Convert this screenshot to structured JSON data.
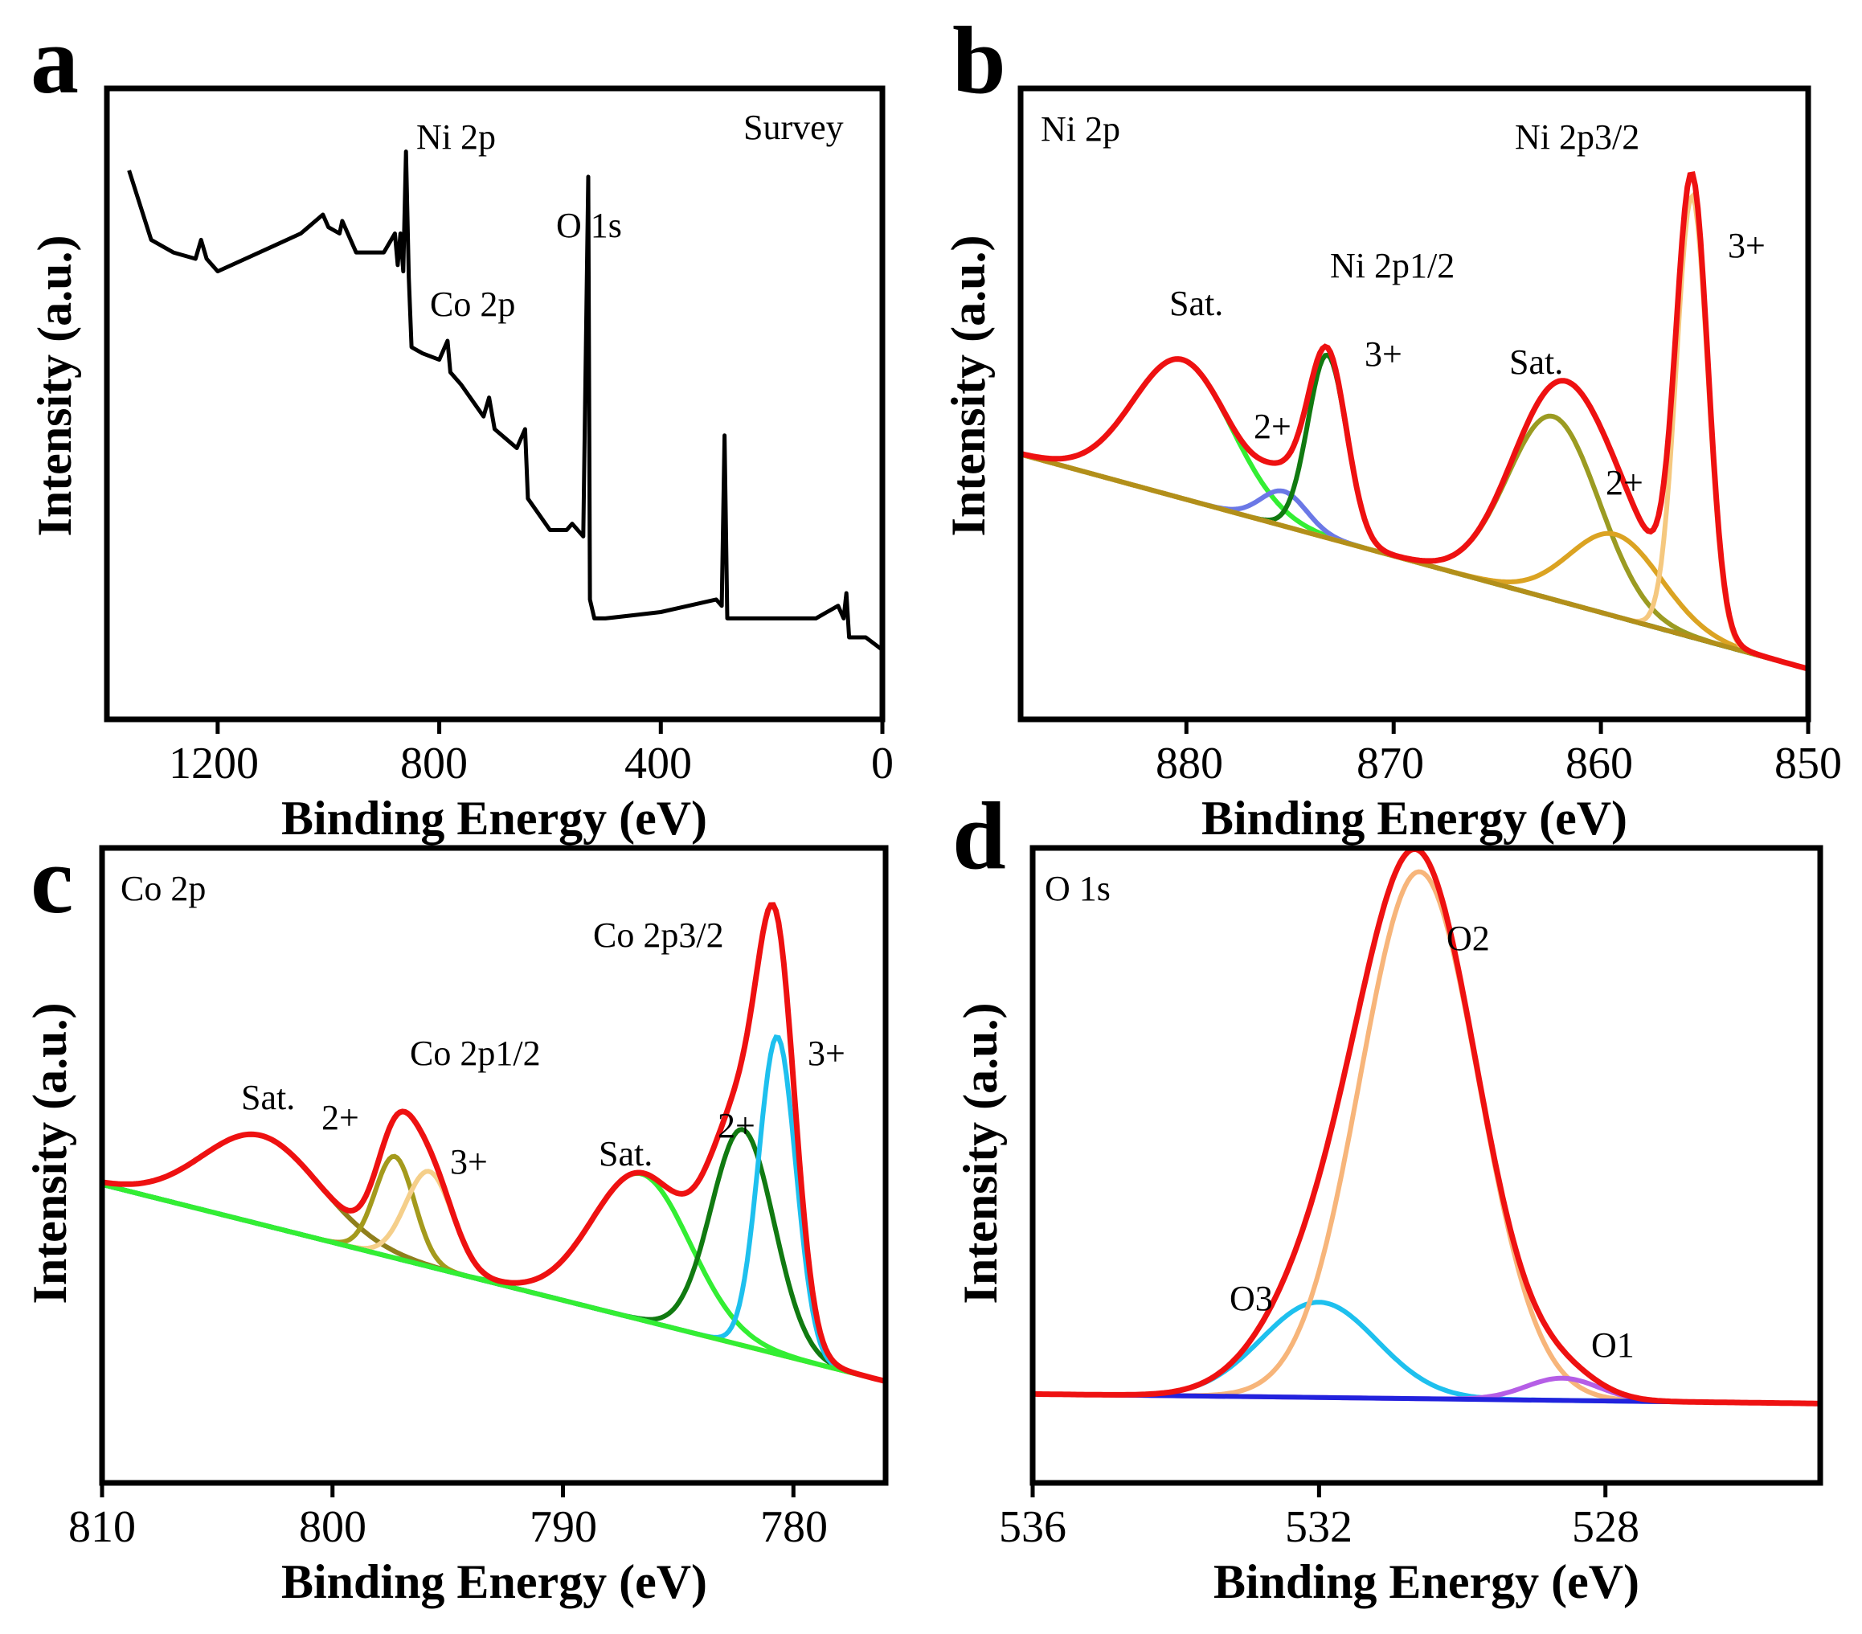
{
  "chart_data": [
    {
      "panel": "a",
      "type": "line",
      "title": "Survey",
      "xlabel": "Binding Energy (eV)",
      "ylabel": "Intensity (a.u.)",
      "xlim": [
        1400,
        0
      ],
      "ylim": [
        0,
        100
      ],
      "xticks": [
        1200,
        800,
        400,
        0
      ],
      "annotations": [
        {
          "text": "Ni 2p",
          "x": 820,
          "y": 92
        },
        {
          "text": "Co 2p",
          "x": 770,
          "y": 66
        },
        {
          "text": "O 1s",
          "x": 530,
          "y": 79
        },
        {
          "text": "Survey",
          "x": 150,
          "y": 93
        }
      ],
      "series": [
        {
          "name": "Survey",
          "color": "#000000",
          "x": [
            1360,
            1320,
            1280,
            1240,
            1230,
            1220,
            1200,
            1150,
            1100,
            1050,
            1010,
            1000,
            980,
            975,
            950,
            900,
            880,
            875,
            870,
            865,
            860,
            855,
            850,
            830,
            800,
            785,
            780,
            760,
            720,
            710,
            700,
            660,
            645,
            640,
            600,
            570,
            560,
            540,
            531,
            528,
            520,
            500,
            450,
            400,
            350,
            300,
            290,
            285,
            280,
            250,
            200,
            120,
            100,
            80,
            70,
            65,
            60,
            30,
            0
          ],
          "y": [
            87,
            76,
            74,
            73,
            76,
            73,
            71,
            73,
            75,
            77,
            80,
            78,
            77,
            79,
            74,
            74,
            77,
            72,
            77,
            71,
            90,
            70,
            59,
            58,
            57,
            60,
            55,
            53,
            48,
            51,
            46,
            43,
            46,
            35,
            30,
            30,
            31,
            29,
            86,
            19,
            16,
            16,
            16.5,
            17,
            18,
            19,
            18,
            45,
            16,
            16,
            16,
            16,
            17,
            18,
            16,
            20,
            13,
            13,
            11
          ]
        }
      ]
    },
    {
      "panel": "b",
      "type": "line",
      "title": "Ni 2p",
      "xlabel": "Binding Energy (eV)",
      "ylabel": "Intensity (a.u.)",
      "xlim": [
        888,
        850
      ],
      "ylim": [
        0,
        100
      ],
      "xticks": [
        880,
        870,
        860,
        850
      ],
      "background": {
        "x": [
          888,
          850
        ],
        "y": [
          42,
          8
        ]
      },
      "annotations": [
        {
          "text": "Ni 2p",
          "x": 885,
          "y": 93
        },
        {
          "text": "Ni 2p3/2",
          "x": 858,
          "y": 92
        },
        {
          "text": "3+",
          "x": 853.5,
          "y": 75
        },
        {
          "text": "Ni 2p1/2",
          "x": 871,
          "y": 70
        },
        {
          "text": "Sat.",
          "x": 881,
          "y": 62
        },
        {
          "text": "3+",
          "x": 870.5,
          "y": 58
        },
        {
          "text": "Sat.",
          "x": 862,
          "y": 55
        },
        {
          "text": "2+",
          "x": 875,
          "y": 45
        },
        {
          "text": "2+",
          "x": 858,
          "y": 36
        }
      ],
      "components": [
        {
          "name": "Sat. (Ni 2p1/2)",
          "center": 880.2,
          "fwhm": 5.6,
          "height": 22,
          "color": "#33ee33"
        },
        {
          "name": "2+ (Ni 2p1/2)",
          "center": 875.3,
          "fwhm": 2.6,
          "height": 5.5,
          "color": "#6b78e6"
        },
        {
          "name": "3+ (Ni 2p1/2)",
          "center": 873.2,
          "fwhm": 2.2,
          "height": 29,
          "color": "#117a11"
        },
        {
          "name": "Sat. (Ni 2p3/2)",
          "center": 862.3,
          "fwhm": 5.2,
          "height": 29,
          "color": "#9b9b22"
        },
        {
          "name": "2+ (Ni 2p3/2)",
          "center": 859.3,
          "fwhm": 5.2,
          "height": 13,
          "color": "#dba322"
        },
        {
          "name": "3+ (Ni 2p3/2)",
          "center": 855.6,
          "fwhm": 1.8,
          "height": 70,
          "color": "#f5c87f"
        }
      ],
      "envelope": {
        "name": "Envelope",
        "color": "#ee1111"
      },
      "background_color": "#b28f1a"
    },
    {
      "panel": "c",
      "type": "line",
      "title": "Co 2p",
      "xlabel": "Binding Energy (eV)",
      "ylabel": "Intensity (a.u.)",
      "xlim": [
        810,
        776
      ],
      "ylim": [
        0,
        100
      ],
      "xticks": [
        810,
        800,
        790,
        780
      ],
      "background": {
        "x": [
          810,
          776
        ],
        "y": [
          47,
          16
        ]
      },
      "annotations": [
        {
          "text": "Co 2p",
          "x": 809,
          "y": 95
        },
        {
          "text": "Co 2p3/2",
          "x": 784.5,
          "y": 88
        },
        {
          "text": "Co 2p1/2",
          "x": 794.5,
          "y": 68
        },
        {
          "text": "3+",
          "x": 778.3,
          "y": 68
        },
        {
          "text": "Sat.",
          "x": 804,
          "y": 59
        },
        {
          "text": "2+",
          "x": 799.5,
          "y": 56
        },
        {
          "text": "2+",
          "x": 782.8,
          "y": 54
        },
        {
          "text": "Sat.",
          "x": 787.5,
          "y": 50
        },
        {
          "text": "3+",
          "x": 795.3,
          "y": 50
        }
      ],
      "components": [
        {
          "name": "Sat. (Co 2p1/2)",
          "center": 803.1,
          "fwhm": 6.0,
          "height": 14,
          "color": "#8f7f1c"
        },
        {
          "name": "2+ (Co 2p1/2)",
          "center": 797.3,
          "fwhm": 2.0,
          "height": 16,
          "color": "#a49a1c"
        },
        {
          "name": "3+ (Co 2p1/2)",
          "center": 795.8,
          "fwhm": 2.4,
          "height": 15,
          "color": "#f5cf8a"
        },
        {
          "name": "Sat. (Co 2p3/2)",
          "center": 786.6,
          "fwhm": 5.0,
          "height": 23,
          "color": "#33ee33"
        },
        {
          "name": "2+ (Co 2p3/2)",
          "center": 782.2,
          "fwhm": 3.2,
          "height": 34,
          "color": "#117a11"
        },
        {
          "name": "3+ (Co 2p3/2)",
          "center": 780.7,
          "fwhm": 1.9,
          "height": 50,
          "color": "#1ec0ee"
        }
      ],
      "envelope": {
        "name": "Envelope",
        "color": "#ee1111"
      },
      "background_color": "#33ee33"
    },
    {
      "panel": "d",
      "type": "line",
      "title": "O 1s",
      "xlabel": "Binding Energy (eV)",
      "ylabel": "Intensity (a.u.)",
      "xlim": [
        536,
        525
      ],
      "ylim": [
        0,
        100
      ],
      "xticks": [
        536,
        532,
        528
      ],
      "background": {
        "x": [
          536,
          525
        ],
        "y": [
          14,
          12.5
        ]
      },
      "annotations": [
        {
          "text": "O 1s",
          "x": 535.8,
          "y": 94
        },
        {
          "text": "O2",
          "x": 530,
          "y": 86
        },
        {
          "text": "O3",
          "x": 532.7,
          "y": 21
        },
        {
          "text": "O1",
          "x": 528.4,
          "y": 17
        }
      ],
      "components": [
        {
          "name": "O3",
          "center": 532.0,
          "fwhm": 1.9,
          "height": 15,
          "color": "#1ec0ee"
        },
        {
          "name": "O2",
          "center": 530.6,
          "fwhm": 1.95,
          "height": 83,
          "color": "#f7b57a"
        },
        {
          "name": "O1",
          "center": 528.6,
          "fwhm": 1.2,
          "height": 3.5,
          "color": "#b55ee6"
        }
      ],
      "envelope": {
        "name": "Envelope",
        "color": "#ee1111"
      },
      "background_color": "#2222dd"
    }
  ],
  "panels": {
    "a": {
      "letter": "a",
      "xlabel": "Binding Energy (eV)",
      "ylabel": "Intensity (a.u.)",
      "ticks": [
        "1200",
        "800",
        "400",
        "0"
      ],
      "labels": {
        "ni2p": "Ni 2p",
        "co2p": "Co 2p",
        "o1s": "O 1s",
        "survey": "Survey"
      }
    },
    "b": {
      "letter": "b",
      "xlabel": "Binding Energy (eV)",
      "ylabel": "Intensity (a.u.)",
      "ticks": [
        "880",
        "870",
        "860",
        "850"
      ],
      "labels": {
        "title": "Ni 2p",
        "p32": "Ni 2p3/2",
        "p12": "Ni 2p1/2",
        "sat1": "Sat.",
        "sat2": "Sat.",
        "three1": "3+",
        "three2": "3+",
        "two1": "2+",
        "two2": "2+"
      }
    },
    "c": {
      "letter": "c",
      "xlabel": "Binding Energy (eV)",
      "ylabel": "Intensity (a.u.)",
      "ticks": [
        "810",
        "800",
        "790",
        "780"
      ],
      "labels": {
        "title": "Co 2p",
        "p32": "Co 2p3/2",
        "p12": "Co 2p1/2",
        "sat1": "Sat.",
        "sat2": "Sat.",
        "three1": "3+",
        "three2": "3+",
        "two1": "2+",
        "two2": "2+"
      }
    },
    "d": {
      "letter": "d",
      "xlabel": "Binding Energy (eV)",
      "ylabel": "Intensity (a.u.)",
      "ticks": [
        "536",
        "532",
        "528"
      ],
      "labels": {
        "title": "O 1s",
        "o1": "O1",
        "o2": "O2",
        "o3": "O3"
      }
    }
  }
}
